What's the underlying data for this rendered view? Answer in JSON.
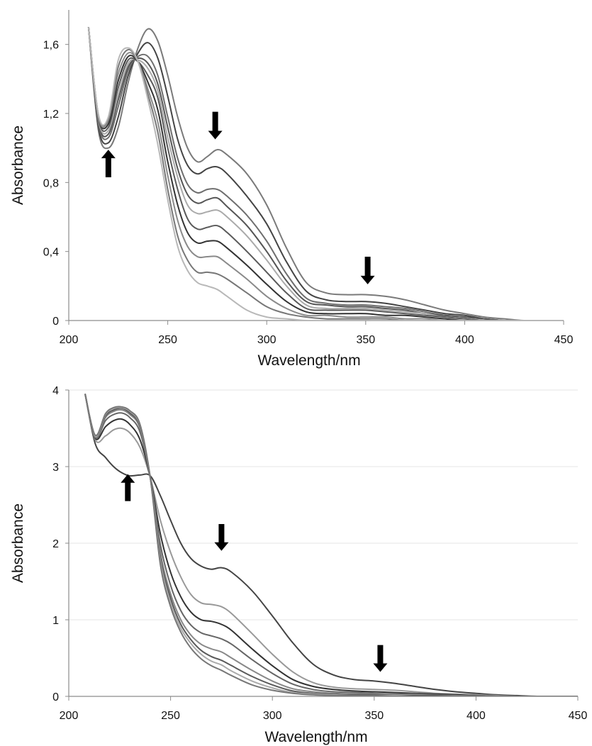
{
  "chart_data": [
    {
      "type": "line",
      "xlabel": "Wavelength/nm",
      "ylabel": "Absorbance",
      "xlim": [
        200,
        450
      ],
      "ylim": [
        0,
        1.8
      ],
      "xticks": [
        200,
        250,
        300,
        350,
        400,
        450
      ],
      "xtick_labels": [
        "200",
        "250",
        "300",
        "350",
        "400",
        "450"
      ],
      "yticks": [
        0,
        0.4,
        0.8,
        1.2,
        1.6
      ],
      "ytick_labels": [
        "0",
        "0,4",
        "0,8",
        "1,2",
        "1,6"
      ],
      "grid": false,
      "legend": "none",
      "x": [
        210,
        215,
        220,
        225,
        230,
        235,
        240,
        245,
        250,
        255,
        260,
        265,
        270,
        275,
        280,
        290,
        300,
        310,
        320,
        330,
        340,
        350,
        360,
        370,
        380,
        390,
        400,
        410,
        420,
        430,
        440,
        450
      ],
      "series": [
        {
          "color": "#7a7a7a",
          "values": [
            1.7,
            1.1,
            1.0,
            1.12,
            1.38,
            1.58,
            1.69,
            1.62,
            1.42,
            1.18,
            1.0,
            0.92,
            0.95,
            0.99,
            0.96,
            0.85,
            0.67,
            0.42,
            0.22,
            0.16,
            0.15,
            0.15,
            0.14,
            0.12,
            0.09,
            0.06,
            0.04,
            0.02,
            0.01,
            0.0,
            0.0,
            0.0
          ]
        },
        {
          "color": "#444444",
          "values": [
            1.7,
            1.12,
            1.03,
            1.18,
            1.42,
            1.55,
            1.61,
            1.52,
            1.3,
            1.05,
            0.9,
            0.85,
            0.88,
            0.89,
            0.85,
            0.72,
            0.56,
            0.34,
            0.17,
            0.12,
            0.11,
            0.11,
            0.1,
            0.08,
            0.06,
            0.04,
            0.03,
            0.01,
            0.0,
            0.0,
            0.0,
            0.0
          ]
        },
        {
          "color": "#6e6e6e",
          "values": [
            1.7,
            1.14,
            1.06,
            1.24,
            1.45,
            1.53,
            1.53,
            1.42,
            1.18,
            0.94,
            0.79,
            0.74,
            0.76,
            0.76,
            0.72,
            0.61,
            0.46,
            0.27,
            0.13,
            0.1,
            0.09,
            0.09,
            0.08,
            0.07,
            0.05,
            0.03,
            0.02,
            0.01,
            0.0,
            0.0,
            0.0,
            0.0
          ]
        },
        {
          "color": "#555555",
          "values": [
            1.7,
            1.15,
            1.08,
            1.28,
            1.47,
            1.52,
            1.49,
            1.37,
            1.12,
            0.88,
            0.73,
            0.68,
            0.7,
            0.71,
            0.66,
            0.55,
            0.4,
            0.23,
            0.11,
            0.09,
            0.08,
            0.08,
            0.07,
            0.06,
            0.04,
            0.03,
            0.02,
            0.01,
            0.0,
            0.0,
            0.0,
            0.0
          ]
        },
        {
          "color": "#aaaaaa",
          "values": [
            1.7,
            1.16,
            1.1,
            1.31,
            1.49,
            1.51,
            1.46,
            1.33,
            1.06,
            0.83,
            0.67,
            0.62,
            0.63,
            0.64,
            0.6,
            0.49,
            0.35,
            0.2,
            0.09,
            0.07,
            0.07,
            0.07,
            0.06,
            0.05,
            0.04,
            0.02,
            0.01,
            0.0,
            0.0,
            0.0,
            0.0,
            0.0
          ]
        },
        {
          "color": "#5a5a5a",
          "values": [
            1.7,
            1.17,
            1.12,
            1.35,
            1.51,
            1.5,
            1.42,
            1.29,
            1.0,
            0.76,
            0.59,
            0.53,
            0.54,
            0.55,
            0.51,
            0.4,
            0.28,
            0.16,
            0.07,
            0.06,
            0.06,
            0.06,
            0.05,
            0.04,
            0.03,
            0.02,
            0.01,
            0.0,
            0.0,
            0.0,
            0.0,
            0.0
          ]
        },
        {
          "color": "#333333",
          "values": [
            1.7,
            1.18,
            1.14,
            1.39,
            1.53,
            1.5,
            1.38,
            1.22,
            0.92,
            0.67,
            0.51,
            0.45,
            0.46,
            0.46,
            0.42,
            0.32,
            0.21,
            0.11,
            0.05,
            0.04,
            0.04,
            0.04,
            0.03,
            0.03,
            0.02,
            0.01,
            0.0,
            0.0,
            0.0,
            0.0,
            0.0,
            0.0
          ]
        },
        {
          "color": "#8a8a8a",
          "values": [
            1.7,
            1.18,
            1.16,
            1.43,
            1.55,
            1.5,
            1.34,
            1.15,
            0.84,
            0.58,
            0.43,
            0.37,
            0.37,
            0.37,
            0.33,
            0.24,
            0.14,
            0.07,
            0.03,
            0.03,
            0.02,
            0.02,
            0.02,
            0.01,
            0.01,
            0.0,
            0.0,
            0.0,
            0.0,
            0.0,
            0.0,
            0.0
          ]
        },
        {
          "color": "#777777",
          "values": [
            1.7,
            1.19,
            1.17,
            1.47,
            1.57,
            1.5,
            1.31,
            1.09,
            0.76,
            0.49,
            0.35,
            0.28,
            0.28,
            0.27,
            0.24,
            0.16,
            0.08,
            0.04,
            0.02,
            0.01,
            0.01,
            0.01,
            0.01,
            0.0,
            0.0,
            0.0,
            0.0,
            0.0,
            0.0,
            0.0,
            0.0,
            0.0
          ]
        },
        {
          "color": "#b8b8b8",
          "values": [
            1.7,
            1.19,
            1.18,
            1.51,
            1.58,
            1.5,
            1.28,
            1.02,
            0.7,
            0.43,
            0.29,
            0.22,
            0.2,
            0.18,
            0.14,
            0.06,
            0.02,
            0.01,
            0.0,
            0.0,
            0.0,
            0.0,
            0.0,
            0.0,
            0.0,
            0.0,
            0.0,
            0.0,
            0.0,
            0.0,
            0.0,
            0.0
          ]
        }
      ],
      "annotations": [
        {
          "type": "arrow",
          "direction": "up",
          "x": 220,
          "y": 0.83,
          "length": 0.16
        },
        {
          "type": "arrow",
          "direction": "down",
          "x": 274,
          "y": 1.21,
          "length": 0.16
        },
        {
          "type": "arrow",
          "direction": "down",
          "x": 351,
          "y": 0.37,
          "length": 0.16
        }
      ]
    },
    {
      "type": "line",
      "xlabel": "Wavelength/nm",
      "ylabel": "Absorbance",
      "xlim": [
        200,
        450
      ],
      "ylim": [
        0,
        4
      ],
      "xticks": [
        200,
        250,
        300,
        350,
        400,
        450
      ],
      "xtick_labels": [
        "200",
        "250",
        "300",
        "350",
        "400",
        "450"
      ],
      "yticks": [
        0,
        1,
        2,
        3,
        4
      ],
      "ytick_labels": [
        "0",
        "1",
        "2",
        "3",
        "4"
      ],
      "grid": true,
      "legend": "none",
      "x": [
        208,
        213,
        218,
        222,
        226,
        230,
        235,
        240,
        245,
        250,
        255,
        260,
        265,
        270,
        275,
        280,
        290,
        300,
        310,
        320,
        330,
        340,
        350,
        360,
        370,
        380,
        390,
        400,
        410,
        420,
        430,
        440,
        450
      ],
      "series": [
        {
          "color": "#444444",
          "values": [
            3.95,
            3.3,
            3.12,
            3.0,
            2.92,
            2.88,
            2.89,
            2.88,
            2.62,
            2.3,
            2.0,
            1.8,
            1.7,
            1.66,
            1.68,
            1.62,
            1.38,
            1.05,
            0.7,
            0.42,
            0.28,
            0.22,
            0.2,
            0.17,
            0.13,
            0.09,
            0.06,
            0.04,
            0.02,
            0.01,
            0.0,
            0.0,
            0.0
          ]
        },
        {
          "color": "#999999",
          "values": [
            3.95,
            3.35,
            3.4,
            3.48,
            3.5,
            3.44,
            3.25,
            2.86,
            2.3,
            1.88,
            1.56,
            1.33,
            1.22,
            1.2,
            1.17,
            1.08,
            0.82,
            0.55,
            0.32,
            0.18,
            0.12,
            0.1,
            0.09,
            0.08,
            0.06,
            0.04,
            0.03,
            0.02,
            0.01,
            0.0,
            0.0,
            0.0,
            0.0
          ]
        },
        {
          "color": "#333333",
          "values": [
            3.95,
            3.37,
            3.52,
            3.6,
            3.62,
            3.55,
            3.35,
            2.86,
            2.12,
            1.62,
            1.3,
            1.1,
            1.0,
            0.98,
            0.94,
            0.86,
            0.62,
            0.4,
            0.22,
            0.13,
            0.09,
            0.07,
            0.06,
            0.05,
            0.04,
            0.03,
            0.02,
            0.01,
            0.0,
            0.0,
            0.0,
            0.0,
            0.0
          ]
        },
        {
          "color": "#666666",
          "values": [
            3.95,
            3.38,
            3.6,
            3.68,
            3.7,
            3.64,
            3.45,
            2.86,
            1.98,
            1.45,
            1.12,
            0.93,
            0.83,
            0.79,
            0.75,
            0.68,
            0.48,
            0.3,
            0.16,
            0.09,
            0.06,
            0.05,
            0.04,
            0.03,
            0.03,
            0.02,
            0.01,
            0.01,
            0.0,
            0.0,
            0.0,
            0.0,
            0.0
          ]
        },
        {
          "color": "#888888",
          "values": [
            3.95,
            3.39,
            3.64,
            3.72,
            3.74,
            3.68,
            3.5,
            2.86,
            1.88,
            1.34,
            1.0,
            0.8,
            0.68,
            0.62,
            0.58,
            0.5,
            0.34,
            0.2,
            0.1,
            0.06,
            0.04,
            0.03,
            0.03,
            0.02,
            0.02,
            0.01,
            0.01,
            0.0,
            0.0,
            0.0,
            0.0,
            0.0,
            0.0
          ]
        },
        {
          "color": "#5a5a5a",
          "values": [
            3.95,
            3.4,
            3.66,
            3.74,
            3.76,
            3.7,
            3.52,
            2.86,
            1.82,
            1.28,
            0.94,
            0.74,
            0.6,
            0.52,
            0.47,
            0.4,
            0.26,
            0.15,
            0.07,
            0.04,
            0.03,
            0.02,
            0.02,
            0.01,
            0.01,
            0.01,
            0.0,
            0.0,
            0.0,
            0.0,
            0.0,
            0.0,
            0.0
          ]
        },
        {
          "color": "#aaaaaa",
          "values": [
            3.95,
            3.4,
            3.68,
            3.76,
            3.77,
            3.72,
            3.54,
            2.86,
            1.77,
            1.22,
            0.89,
            0.69,
            0.55,
            0.46,
            0.41,
            0.33,
            0.2,
            0.11,
            0.05,
            0.03,
            0.02,
            0.01,
            0.01,
            0.01,
            0.0,
            0.0,
            0.0,
            0.0,
            0.0,
            0.0,
            0.0,
            0.0,
            0.0
          ]
        },
        {
          "color": "#777777",
          "values": [
            3.95,
            3.41,
            3.69,
            3.77,
            3.78,
            3.73,
            3.55,
            2.86,
            1.72,
            1.17,
            0.84,
            0.63,
            0.49,
            0.4,
            0.34,
            0.27,
            0.15,
            0.08,
            0.04,
            0.02,
            0.01,
            0.01,
            0.01,
            0.0,
            0.0,
            0.0,
            0.0,
            0.0,
            0.0,
            0.0,
            0.0,
            0.0,
            0.0
          ]
        }
      ],
      "annotations": [
        {
          "type": "arrow",
          "direction": "up",
          "x": 229,
          "y": 2.55,
          "length": 0.35
        },
        {
          "type": "arrow",
          "direction": "down",
          "x": 275,
          "y": 2.25,
          "length": 0.35
        },
        {
          "type": "arrow",
          "direction": "down",
          "x": 353,
          "y": 0.67,
          "length": 0.35
        }
      ]
    }
  ]
}
